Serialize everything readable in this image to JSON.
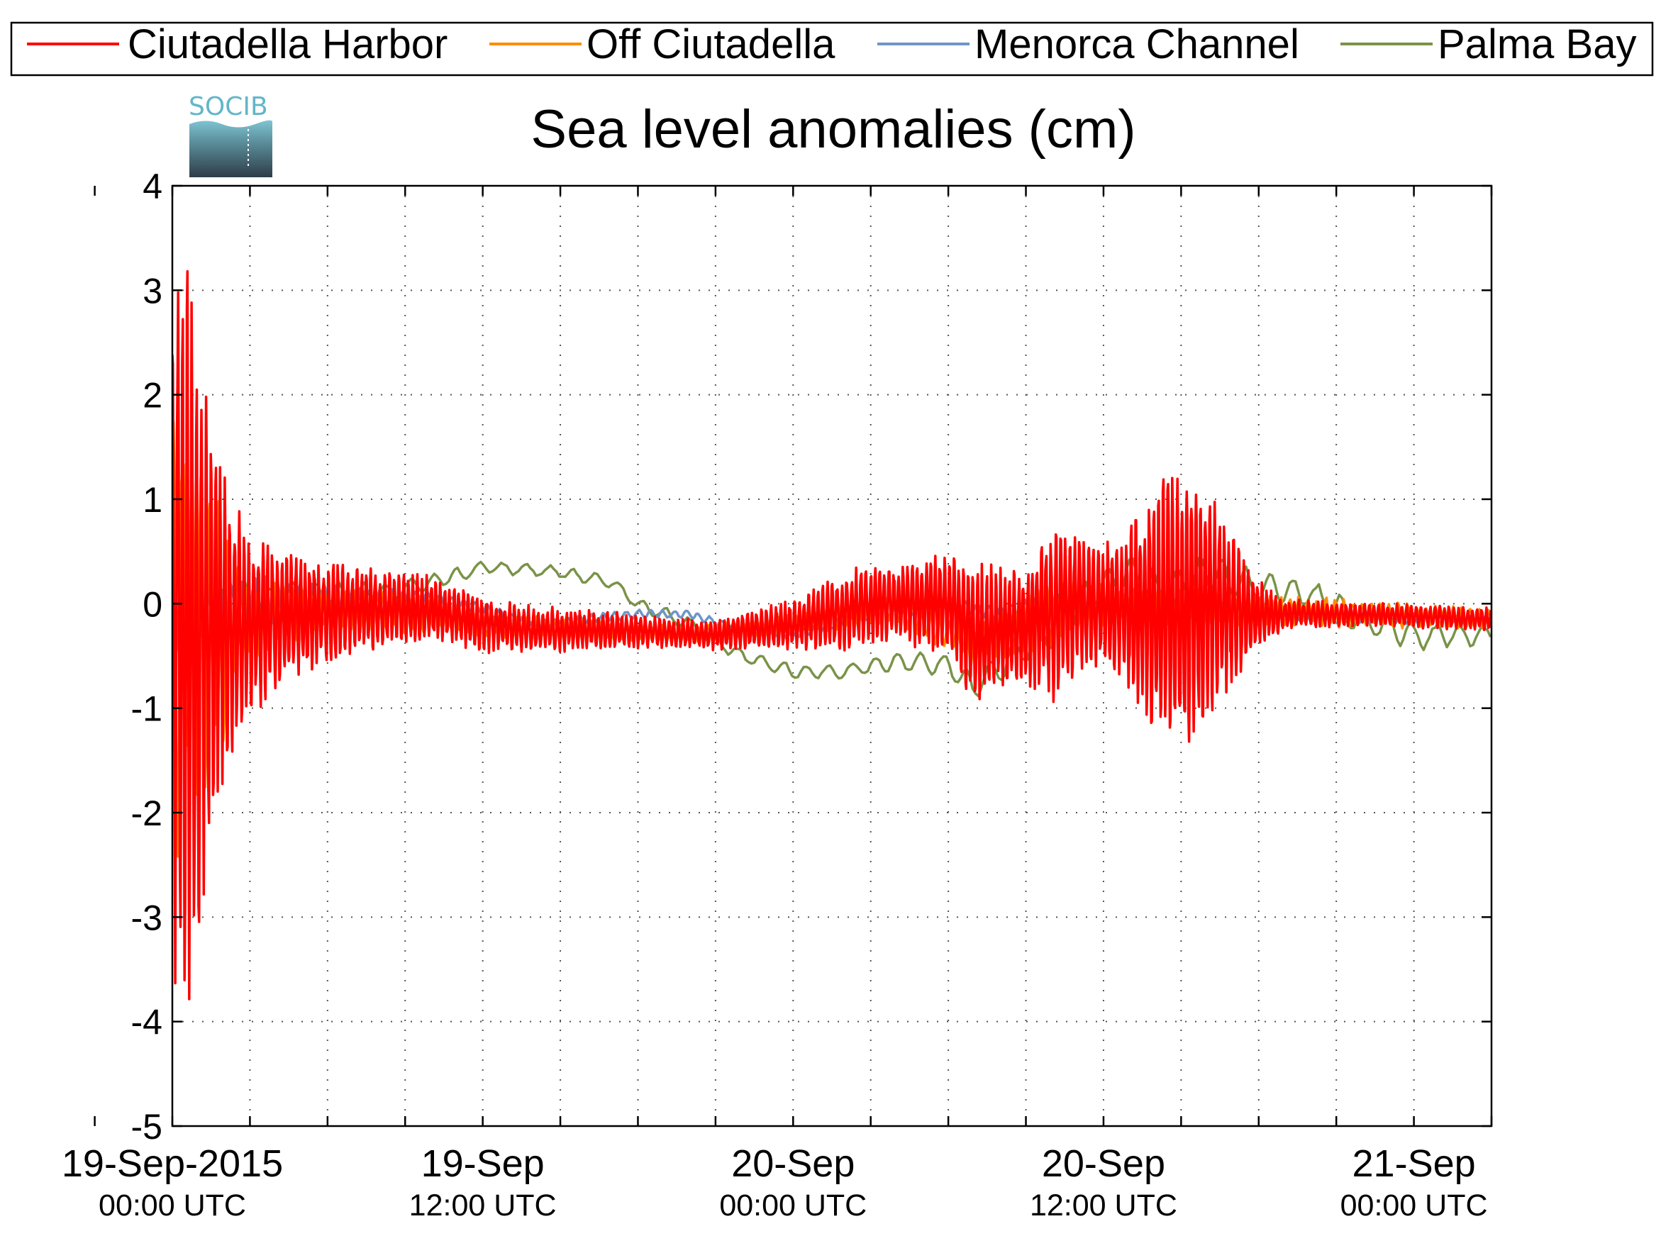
{
  "chart_data": {
    "type": "line",
    "title": "Sea level anomalies (cm)",
    "xlabel": "",
    "ylabel": "",
    "logo_text": "SOCIB",
    "ylim": [
      -5,
      4
    ],
    "y_ticks": [
      4,
      3,
      2,
      1,
      0,
      -1,
      -2,
      -3,
      -4,
      -5
    ],
    "xlim": [
      "2015-09-19T00:00Z",
      "2015-09-21T03:00Z"
    ],
    "x_tick_labels": [
      {
        "date": "19-Sep-2015",
        "time": "00:00 UTC",
        "x": "2015-09-19T00:00Z"
      },
      {
        "date": "19-Sep",
        "time": "12:00 UTC",
        "x": "2015-09-19T12:00Z"
      },
      {
        "date": "20-Sep",
        "time": "00:00 UTC",
        "x": "2015-09-20T00:00Z"
      },
      {
        "date": "20-Sep",
        "time": "12:00 UTC",
        "x": "2015-09-20T12:00Z"
      },
      {
        "date": "21-Sep",
        "time": "00:00 UTC",
        "x": "2015-09-21T00:00Z"
      }
    ],
    "x_minor_ticks": [
      "2015-09-18T21:00Z",
      "2015-09-19T00:00Z",
      "2015-09-19T03:00Z",
      "2015-09-19T06:00Z",
      "2015-09-19T09:00Z",
      "2015-09-19T12:00Z",
      "2015-09-19T15:00Z",
      "2015-09-19T18:00Z",
      "2015-09-19T21:00Z",
      "2015-09-20T00:00Z",
      "2015-09-20T03:00Z",
      "2015-09-20T06:00Z",
      "2015-09-20T09:00Z",
      "2015-09-20T12:00Z",
      "2015-09-20T15:00Z",
      "2015-09-20T18:00Z",
      "2015-09-20T21:00Z",
      "2015-09-21T00:00Z",
      "2015-09-21T03:00Z"
    ],
    "grid": true,
    "legend_position": "top",
    "series": [
      {
        "name": "Ciutadella Harbor",
        "color": "#ff0000",
        "stroke": 3.5,
        "envelope": [
          [
            -3,
            0.4
          ],
          [
            -2,
            1.0
          ],
          [
            -1,
            1.3
          ],
          [
            -0.5,
            2.0
          ],
          [
            0,
            3.4
          ],
          [
            0.5,
            4.0
          ],
          [
            1,
            3.0
          ],
          [
            1.5,
            2.2
          ],
          [
            2,
            1.5
          ],
          [
            3,
            0.9
          ],
          [
            5,
            0.6
          ],
          [
            7,
            0.45
          ],
          [
            9,
            0.35
          ],
          [
            11,
            0.3
          ],
          [
            13,
            0.25
          ],
          [
            16,
            0.2
          ],
          [
            19,
            0.15
          ],
          [
            21,
            0.15
          ],
          [
            24,
            0.25
          ],
          [
            26,
            0.4
          ],
          [
            28,
            0.4
          ],
          [
            30,
            0.5
          ],
          [
            31,
            0.75
          ],
          [
            32,
            0.6
          ],
          [
            33,
            0.6
          ],
          [
            34,
            0.9
          ],
          [
            35,
            0.7
          ],
          [
            36,
            0.6
          ],
          [
            37,
            0.9
          ],
          [
            38,
            1.3
          ],
          [
            39,
            1.5
          ],
          [
            40,
            1.2
          ],
          [
            41,
            0.8
          ],
          [
            42,
            0.35
          ],
          [
            43,
            0.15
          ],
          [
            46,
            0.12
          ],
          [
            51,
            0.12
          ]
        ],
        "baseline": [
          [
            -3,
            0
          ],
          [
            0,
            -0.2
          ],
          [
            3,
            -0.2
          ],
          [
            5,
            -0.1
          ],
          [
            8,
            -0.05
          ],
          [
            10,
            -0.05
          ],
          [
            12,
            -0.2
          ],
          [
            14,
            -0.25
          ],
          [
            17,
            -0.25
          ],
          [
            21,
            -0.3
          ],
          [
            24,
            -0.2
          ],
          [
            27,
            0.0
          ],
          [
            30,
            0.0
          ],
          [
            31,
            -0.3
          ],
          [
            33,
            -0.2
          ],
          [
            35,
            0.0
          ],
          [
            38,
            -0.1
          ],
          [
            40,
            0.0
          ],
          [
            42,
            -0.1
          ],
          [
            46,
            -0.1
          ],
          [
            51,
            -0.15
          ]
        ],
        "period_h": 0.18
      },
      {
        "name": "Off Ciutadella",
        "color": "#ff8c00",
        "stroke": 3.5,
        "envelope": [
          [
            -3,
            0.2
          ],
          [
            -1.5,
            0.6
          ],
          [
            -0.5,
            1.2
          ],
          [
            0,
            2.5
          ],
          [
            0.5,
            2.0
          ],
          [
            1,
            1.9
          ],
          [
            1.5,
            1.6
          ],
          [
            2,
            1.3
          ],
          [
            2.5,
            0.6
          ],
          [
            3,
            0.4
          ],
          [
            6,
            0.25
          ],
          [
            9,
            0.2
          ],
          [
            12,
            0.12
          ],
          [
            16,
            0.1
          ],
          [
            20,
            0.08
          ],
          [
            24,
            0.1
          ],
          [
            28,
            0.15
          ],
          [
            31,
            0.2
          ],
          [
            34,
            0.35
          ],
          [
            37,
            0.2
          ],
          [
            40,
            0.2
          ],
          [
            44,
            0.15
          ],
          [
            51,
            0.1
          ]
        ],
        "baseline": [
          [
            -3,
            0
          ],
          [
            0,
            -0.2
          ],
          [
            3,
            -0.15
          ],
          [
            6,
            -0.05
          ],
          [
            10,
            -0.1
          ],
          [
            12,
            -0.2
          ],
          [
            16,
            -0.25
          ],
          [
            20,
            -0.3
          ],
          [
            24,
            -0.2
          ],
          [
            28,
            -0.05
          ],
          [
            31,
            -0.4
          ],
          [
            33,
            -0.2
          ],
          [
            35,
            0.0
          ],
          [
            38,
            0.0
          ],
          [
            40,
            -0.05
          ],
          [
            42,
            -0.05
          ],
          [
            46,
            -0.1
          ],
          [
            51,
            -0.15
          ]
        ],
        "period_h": 0.35
      },
      {
        "name": "Menorca Channel",
        "color": "#6f95c7",
        "stroke": 3.5,
        "envelope": [
          [
            -3,
            0.15
          ],
          [
            -1,
            0.25
          ],
          [
            0,
            0.45
          ],
          [
            2,
            0.35
          ],
          [
            4,
            0.25
          ],
          [
            7,
            0.12
          ],
          [
            10,
            0.08
          ],
          [
            14,
            0.05
          ],
          [
            20,
            0.04
          ],
          [
            24,
            0.05
          ],
          [
            28,
            0.06
          ],
          [
            32,
            0.08
          ],
          [
            36,
            0.08
          ],
          [
            40,
            0.06
          ],
          [
            44,
            0.05
          ],
          [
            51,
            0.04
          ]
        ],
        "baseline": [
          [
            -3,
            0
          ],
          [
            0,
            -0.1
          ],
          [
            3,
            0.0
          ],
          [
            6,
            0.05
          ],
          [
            10,
            0.05
          ],
          [
            12,
            -0.05
          ],
          [
            14,
            -0.2
          ],
          [
            18,
            -0.1
          ],
          [
            20,
            -0.1
          ],
          [
            22,
            -0.25
          ],
          [
            24,
            -0.3
          ],
          [
            27,
            -0.1
          ],
          [
            30,
            0.0
          ],
          [
            32,
            -0.1
          ],
          [
            34,
            0.05
          ],
          [
            36,
            -0.05
          ],
          [
            38,
            0.0
          ],
          [
            40,
            0.05
          ],
          [
            42,
            -0.1
          ],
          [
            45,
            -0.15
          ],
          [
            51,
            -0.15
          ]
        ],
        "period_h": 0.45
      },
      {
        "name": "Palma Bay",
        "color": "#7a9348",
        "stroke": 3.5,
        "envelope": [
          [
            -3,
            0.4
          ],
          [
            0,
            0.35
          ],
          [
            4,
            0.25
          ],
          [
            8,
            0.1
          ],
          [
            14,
            0.06
          ],
          [
            20,
            0.08
          ],
          [
            26,
            0.08
          ],
          [
            30,
            0.12
          ],
          [
            34,
            0.25
          ],
          [
            38,
            0.25
          ],
          [
            40,
            0.2
          ],
          [
            44,
            0.15
          ],
          [
            48,
            0.15
          ],
          [
            51,
            0.1
          ]
        ],
        "baseline": [
          [
            -3,
            -0.5
          ],
          [
            -2,
            -0.9
          ],
          [
            0,
            -0.3
          ],
          [
            2,
            -0.1
          ],
          [
            5,
            0.05
          ],
          [
            8,
            0.1
          ],
          [
            10,
            0.2
          ],
          [
            12,
            0.35
          ],
          [
            15,
            0.3
          ],
          [
            17,
            0.2
          ],
          [
            18,
            0.0
          ],
          [
            20,
            -0.2
          ],
          [
            22,
            -0.5
          ],
          [
            24,
            -0.65
          ],
          [
            26,
            -0.65
          ],
          [
            28,
            -0.55
          ],
          [
            30,
            -0.6
          ],
          [
            31,
            -0.8
          ],
          [
            33,
            -0.4
          ],
          [
            35,
            0.0
          ],
          [
            37,
            0.3
          ],
          [
            38,
            0.1
          ],
          [
            40,
            0.3
          ],
          [
            42,
            0.15
          ],
          [
            44,
            0.1
          ],
          [
            46,
            -0.15
          ],
          [
            48,
            -0.3
          ],
          [
            51,
            -0.3
          ]
        ],
        "period_h": 0.9
      }
    ]
  }
}
